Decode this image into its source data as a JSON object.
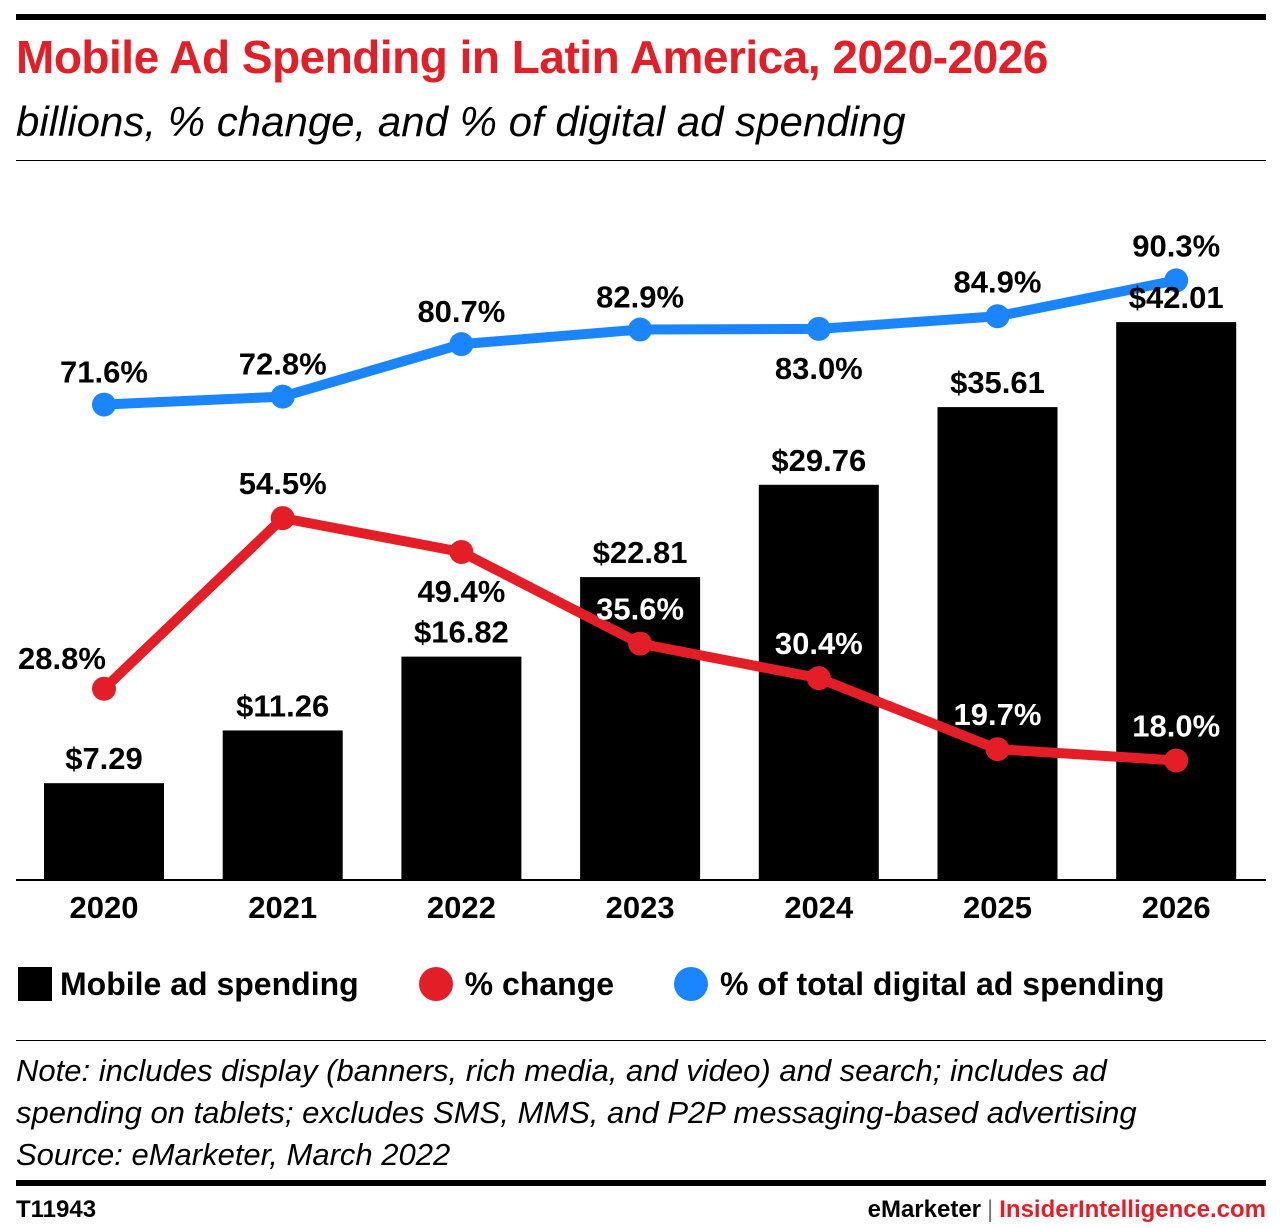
{
  "header": {
    "title": "Mobile Ad Spending in Latin America, 2020-2026",
    "subtitle": "billions, % change, and % of digital ad spending"
  },
  "legend": {
    "items": [
      {
        "label": "Mobile ad spending",
        "color": "#000000",
        "shape": "square"
      },
      {
        "label": "% change",
        "color": "#e41e26",
        "shape": "circle"
      },
      {
        "label": "% of total digital ad spending",
        "color": "#1a85ff",
        "shape": "circle"
      }
    ]
  },
  "note": {
    "line1": "Note: includes display (banners, rich media, and video) and search; includes ad",
    "line2": "spending on tablets; excludes SMS, MMS, and P2P messaging-based advertising",
    "source": "Source: eMarketer, March 2022"
  },
  "footer": {
    "chart_id": "T11943",
    "brand": "eMarketer",
    "separator": "|",
    "site": "InsiderIntelligence.com"
  },
  "colors": {
    "bar": "#000000",
    "change": "#e41e26",
    "share": "#1a85ff",
    "title": "#e41e26"
  },
  "chart_data": {
    "type": "bar",
    "categories": [
      "2020",
      "2021",
      "2022",
      "2023",
      "2024",
      "2025",
      "2026"
    ],
    "series": [
      {
        "name": "Mobile ad spending",
        "type": "bar",
        "values": [
          7.29,
          11.26,
          16.82,
          22.81,
          29.76,
          35.61,
          42.01
        ],
        "labels": [
          "$7.29",
          "$11.26",
          "$16.82",
          "$22.81",
          "$29.76",
          "$35.61",
          "$42.01"
        ]
      },
      {
        "name": "% change",
        "type": "line",
        "values": [
          28.8,
          54.5,
          49.4,
          35.6,
          30.4,
          19.7,
          18.0
        ],
        "labels": [
          "28.8%",
          "54.5%",
          "49.4%",
          "35.6%",
          "30.4%",
          "19.7%",
          "18.0%"
        ]
      },
      {
        "name": "% of total digital ad spending",
        "type": "line",
        "values": [
          71.6,
          72.8,
          80.7,
          82.9,
          83.0,
          84.9,
          90.3
        ],
        "labels": [
          "71.6%",
          "72.8%",
          "80.7%",
          "82.9%",
          "83.0%",
          "84.9%",
          "90.3%"
        ]
      }
    ],
    "ylim": [
      0,
      50
    ],
    "grid": false,
    "legend_position": "bottom"
  }
}
